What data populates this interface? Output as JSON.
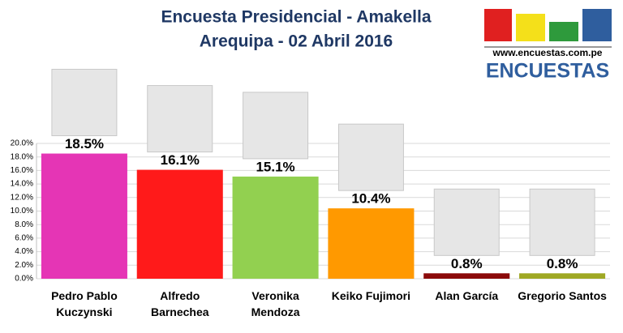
{
  "chart_data": {
    "type": "bar",
    "title": "Encuesta Presidencial - Amakella",
    "subtitle": "Arequipa - 02 Abril 2016",
    "source_url": "www.encuestas.com.pe",
    "brand": "ENCUESTAS",
    "categories": [
      "Pedro Pablo Kuczynski",
      "Alfredo Barnechea",
      "Veronika Mendoza",
      "Keiko Fujimori",
      "Alan García",
      "Gregorio Santos"
    ],
    "values": [
      18.5,
      16.1,
      15.1,
      10.4,
      0.8,
      0.8
    ],
    "value_labels": [
      "18.5%",
      "16.1%",
      "15.1%",
      "10.4%",
      "0.8%",
      "0.8%"
    ],
    "colors": [
      "#e535b5",
      "#ff1a1a",
      "#92d050",
      "#ff9900",
      "#8b0a0a",
      "#9fa824"
    ],
    "ylim": [
      0,
      20
    ],
    "yticks": [
      {
        "value": 0,
        "label": "0.0%"
      },
      {
        "value": 2,
        "label": "2.0%"
      },
      {
        "value": 4,
        "label": "4.0%"
      },
      {
        "value": 6,
        "label": "6.0%"
      },
      {
        "value": 8,
        "label": "8.0%"
      },
      {
        "value": 10,
        "label": "10.0%"
      },
      {
        "value": 12,
        "label": "12.0%"
      },
      {
        "value": 14,
        "label": "14.0%"
      },
      {
        "value": 16,
        "label": "16.0%"
      },
      {
        "value": 18,
        "label": "18.0%"
      },
      {
        "value": 20,
        "label": "20.0%"
      }
    ],
    "grid": true
  }
}
